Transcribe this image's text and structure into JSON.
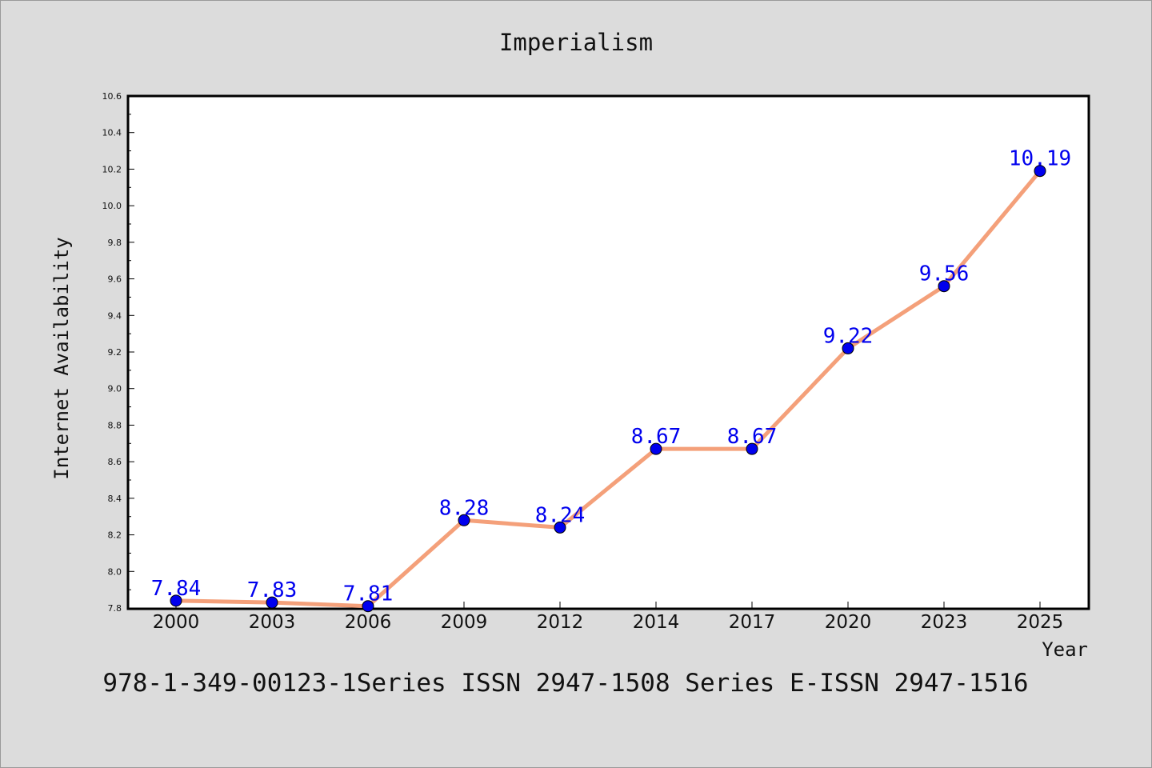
{
  "chart_data": {
    "type": "line",
    "title": "Imperialism",
    "xlabel": "Year",
    "ylabel": "Internet Availability",
    "categories": [
      "2000",
      "2003",
      "2006",
      "2009",
      "2012",
      "2014",
      "2017",
      "2020",
      "2023",
      "2025"
    ],
    "values": [
      7.84,
      7.83,
      7.81,
      8.28,
      8.24,
      8.67,
      8.67,
      9.22,
      9.56,
      10.19
    ],
    "data_labels": [
      "7.84",
      "7.83",
      "7.81",
      "8.28",
      "8.24",
      "8.67",
      "8.67",
      "9.22",
      "9.56",
      "10.19"
    ],
    "ylim": [
      7.8,
      10.6
    ],
    "yticks": [
      "7.8",
      "8.0",
      "8.2",
      "8.4",
      "8.6",
      "8.8",
      "9.0",
      "9.2",
      "9.4",
      "9.6",
      "9.8",
      "10.0",
      "10.2",
      "10.4",
      "10.6"
    ],
    "grid": false,
    "legend": "none",
    "colors": {
      "line": "#f4a07a",
      "marker": "#0000ee",
      "label": "#0000ee"
    }
  },
  "footer": "978-1-349-00123-1Series ISSN 2947-1508 Series E-ISSN 2947-1516"
}
